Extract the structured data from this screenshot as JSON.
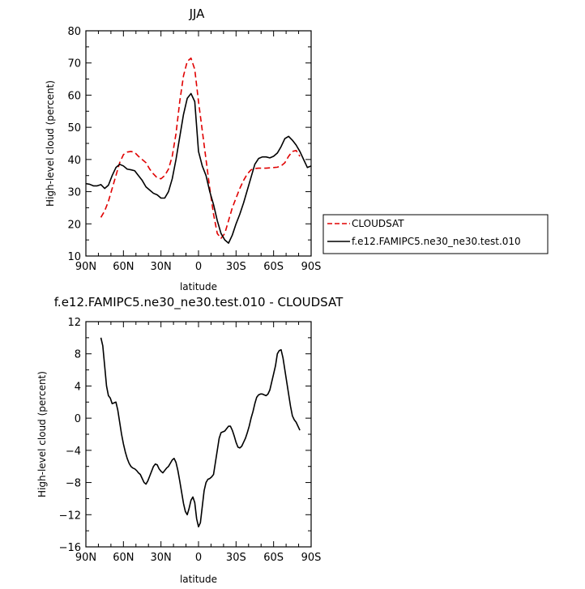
{
  "chart_data": [
    {
      "type": "line",
      "title": "JJA",
      "xlabel": "latitude",
      "ylabel": "High-level cloud (percent)",
      "xlim": [
        90,
        -90
      ],
      "ylim": [
        10,
        80
      ],
      "xticks": [
        90,
        60,
        30,
        0,
        -30,
        -60,
        -90
      ],
      "xtick_labels": [
        "90N",
        "60N",
        "30N",
        "0",
        "30S",
        "60S",
        "90S"
      ],
      "yticks": [
        10,
        20,
        30,
        40,
        50,
        60,
        70,
        80
      ],
      "ytick_labels": [
        "10",
        "20",
        "30",
        "40",
        "50",
        "60",
        "70",
        "80"
      ],
      "grid": false,
      "legend_position": "right",
      "series": [
        {
          "name": "CLOUDSAT",
          "color": "#e00000",
          "dash": "dashed",
          "x": [
            78,
            75,
            72,
            69,
            66,
            63,
            60,
            57,
            54,
            51,
            48,
            45,
            42,
            39,
            36,
            33,
            30,
            27,
            24,
            21,
            18,
            15,
            12,
            9,
            6,
            3,
            0,
            -3,
            -6,
            -9,
            -12,
            -15,
            -18,
            -21,
            -24,
            -27,
            -30,
            -33,
            -36,
            -39,
            -42,
            -45,
            -48,
            -51,
            -54,
            -57,
            -60,
            -63,
            -66,
            -69,
            -72,
            -75,
            -78,
            -81
          ],
          "y": [
            22,
            24,
            27,
            31,
            35,
            39,
            41.5,
            42.3,
            42.5,
            42.2,
            41,
            40,
            39,
            37,
            35.5,
            34.3,
            34,
            35,
            37,
            41,
            48,
            58,
            66,
            70.5,
            71.5,
            68,
            58,
            49,
            40,
            31,
            23,
            17,
            15.5,
            17,
            21,
            25,
            28,
            31,
            33.5,
            35.5,
            36.8,
            37.2,
            37.3,
            37.3,
            37.3,
            37.4,
            37.5,
            37.6,
            38,
            39,
            41,
            42.5,
            42.8,
            41
          ]
        },
        {
          "name": "f.e12.FAMIPC5.ne30_ne30.test.010",
          "color": "#000000",
          "dash": "solid",
          "x": [
            90,
            87,
            84,
            81,
            78,
            75,
            72,
            69,
            66,
            63,
            60,
            57,
            54,
            51,
            48,
            45,
            42,
            39,
            36,
            33,
            30,
            27,
            24,
            21,
            18,
            15,
            12,
            9,
            6,
            3,
            0,
            -3,
            -6,
            -9,
            -12,
            -15,
            -18,
            -21,
            -24,
            -27,
            -30,
            -33,
            -36,
            -39,
            -42,
            -45,
            -48,
            -51,
            -54,
            -57,
            -60,
            -63,
            -66,
            -69,
            -72,
            -75,
            -78,
            -81,
            -84,
            -87,
            -90
          ],
          "y": [
            32.5,
            32.3,
            31.8,
            31.8,
            32.2,
            31,
            32,
            35,
            37.5,
            38.5,
            38,
            37,
            36.8,
            36.5,
            35,
            33.5,
            31.5,
            30.5,
            29.5,
            29,
            28,
            28,
            30,
            34,
            40,
            47,
            54,
            59,
            60.5,
            58,
            42.5,
            38,
            35,
            30,
            26,
            21,
            17,
            15,
            14,
            16.5,
            20,
            23,
            26.5,
            30.5,
            34.5,
            38.5,
            40.3,
            40.8,
            40.8,
            40.5,
            41,
            42,
            44,
            46.5,
            47.2,
            46,
            44.5,
            42.5,
            40,
            37.5,
            38
          ]
        }
      ]
    },
    {
      "type": "line",
      "title": "f.e12.FAMIPC5.ne30_ne30.test.010 - CLOUDSAT",
      "xlabel": "latitude",
      "ylabel": "High-level cloud (percent)",
      "xlim": [
        90,
        -90
      ],
      "ylim": [
        -16,
        12
      ],
      "xticks": [
        90,
        60,
        30,
        0,
        -30,
        -60,
        -90
      ],
      "xtick_labels": [
        "90N",
        "60N",
        "30N",
        "0",
        "30S",
        "60S",
        "90S"
      ],
      "yticks": [
        12,
        8,
        4,
        0,
        -4,
        -8,
        -12,
        -16
      ],
      "ytick_labels": [
        "12",
        "8",
        "4",
        "0",
        "−4",
        "−8",
        "−12",
        "−16"
      ],
      "grid": false,
      "series": [
        {
          "color": "#000000",
          "dash": "solid",
          "x": [
            78,
            76.5,
            75,
            73.5,
            72,
            70.5,
            69,
            67.5,
            66,
            64.5,
            63,
            61.5,
            60,
            58.5,
            57,
            55.5,
            54,
            52.5,
            51,
            49.5,
            48,
            46.5,
            45,
            43.5,
            42,
            40.5,
            39,
            37.5,
            36,
            34.5,
            33,
            31.5,
            30,
            28.5,
            27,
            25.5,
            24,
            22.5,
            21,
            19.5,
            18,
            16.5,
            15,
            13.5,
            12,
            10.5,
            9,
            7.5,
            6,
            4.5,
            3,
            1.5,
            0,
            -1.5,
            -3,
            -4.5,
            -6,
            -7.5,
            -9,
            -10.5,
            -12,
            -13.5,
            -15,
            -16.5,
            -18,
            -19.5,
            -21,
            -22.5,
            -24,
            -25.5,
            -27,
            -28.5,
            -30,
            -31.5,
            -33,
            -34.5,
            -36,
            -37.5,
            -39,
            -40.5,
            -42,
            -43.5,
            -45,
            -46.5,
            -48,
            -49.5,
            -51,
            -52.5,
            -54,
            -55.5,
            -57,
            -58.5,
            -60,
            -61.5,
            -63,
            -64.5,
            -66,
            -67.5,
            -69,
            -70.5,
            -72,
            -73.5,
            -75,
            -76.5,
            -78,
            -79.5,
            -81
          ],
          "y": [
            10,
            9,
            6.5,
            4,
            2.8,
            2.5,
            1.8,
            1.9,
            2,
            1,
            -0.5,
            -2,
            -3.2,
            -4.2,
            -5,
            -5.6,
            -6,
            -6.2,
            -6.3,
            -6.5,
            -6.8,
            -7,
            -7.5,
            -8,
            -8.2,
            -7.8,
            -7.2,
            -6.6,
            -6,
            -5.7,
            -5.8,
            -6.3,
            -6.6,
            -6.8,
            -6.5,
            -6.2,
            -6,
            -5.6,
            -5.2,
            -5,
            -5.5,
            -6.5,
            -7.8,
            -9.2,
            -10.6,
            -11.6,
            -12,
            -11.2,
            -10.2,
            -9.8,
            -10.5,
            -12.5,
            -13.5,
            -13,
            -11,
            -9,
            -8,
            -7.6,
            -7.5,
            -7.3,
            -7,
            -5.5,
            -4,
            -2.5,
            -1.8,
            -1.7,
            -1.6,
            -1.3,
            -1,
            -1,
            -1.5,
            -2.2,
            -3,
            -3.6,
            -3.7,
            -3.5,
            -3,
            -2.5,
            -1.8,
            -1,
            0,
            0.8,
            1.8,
            2.6,
            2.9,
            3,
            3,
            2.9,
            2.8,
            3,
            3.5,
            4.5,
            5.5,
            6.5,
            8,
            8.4,
            8.5,
            7.5,
            6,
            4.5,
            3,
            1.5,
            0.3,
            -0.2,
            -0.5,
            -1,
            -1.5
          ]
        }
      ]
    }
  ]
}
